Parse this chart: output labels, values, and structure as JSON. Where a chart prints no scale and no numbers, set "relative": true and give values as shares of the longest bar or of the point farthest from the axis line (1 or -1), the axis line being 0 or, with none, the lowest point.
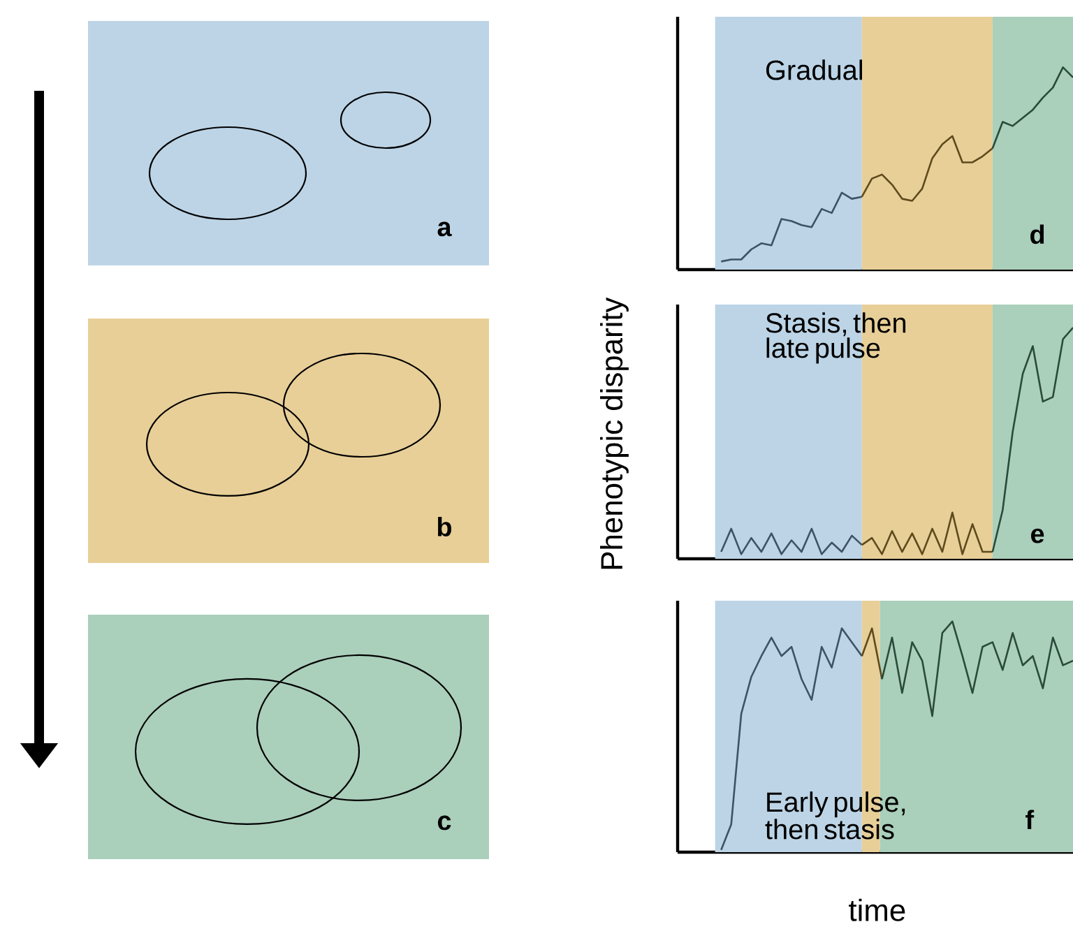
{
  "chart_data": [
    {
      "type": "other",
      "annotations": [
        "a"
      ]
    },
    {
      "type": "other",
      "annotations": [
        "b"
      ]
    },
    {
      "type": "other",
      "annotations": [
        "c"
      ]
    },
    {
      "type": "line",
      "relative": true,
      "annotations": [
        "Gradual",
        "d"
      ],
      "categories": [
        null,
        null,
        null,
        null,
        null,
        null,
        null,
        null,
        null,
        null,
        null,
        null,
        null,
        null,
        null,
        null,
        null,
        null,
        null,
        null,
        null,
        null,
        null,
        null,
        null,
        null,
        null,
        null,
        null,
        null,
        null,
        null,
        null,
        null,
        null,
        null
      ],
      "series": [
        {
          "color": "#3d5364",
          "values": [
            0.04,
            0.05,
            0.05,
            0.1,
            0.13,
            0.12,
            0.25,
            0.24,
            0.22,
            0.21,
            0.3,
            0.28,
            0.38,
            0.35,
            0.36,
            null,
            null,
            null,
            null,
            null,
            null,
            null,
            null,
            null,
            null,
            null,
            null,
            null,
            null,
            null,
            null,
            null,
            null,
            null,
            null,
            null
          ]
        },
        {
          "color": "#5e4a1c",
          "values": [
            null,
            null,
            null,
            null,
            null,
            null,
            null,
            null,
            null,
            null,
            null,
            null,
            null,
            null,
            0.36,
            0.45,
            0.47,
            0.42,
            0.35,
            0.34,
            0.4,
            0.55,
            0.62,
            0.66,
            0.53,
            0.53,
            0.56,
            0.6,
            null,
            null,
            null,
            null,
            null,
            null,
            null,
            null
          ]
        },
        {
          "color": "#2a4a3a",
          "values": [
            null,
            null,
            null,
            null,
            null,
            null,
            null,
            null,
            null,
            null,
            null,
            null,
            null,
            null,
            null,
            null,
            null,
            null,
            null,
            null,
            null,
            null,
            null,
            null,
            null,
            null,
            null,
            0.6,
            0.73,
            0.71,
            0.75,
            0.79,
            0.85,
            0.9,
            1.0,
            0.95
          ]
        }
      ]
    },
    {
      "type": "line",
      "relative": true,
      "ylabel": "Phenotypic disparity",
      "annotations": [
        "Stasis, then late pulse",
        "e"
      ],
      "categories": [
        null,
        null,
        null,
        null,
        null,
        null,
        null,
        null,
        null,
        null,
        null,
        null,
        null,
        null,
        null,
        null,
        null,
        null,
        null,
        null,
        null,
        null,
        null,
        null,
        null,
        null,
        null,
        null,
        null,
        null,
        null,
        null,
        null,
        null,
        null,
        null
      ],
      "series": [
        {
          "color": "#3d5364",
          "values": [
            0.03,
            0.13,
            0.02,
            0.09,
            0.03,
            0.11,
            0.02,
            0.08,
            0.03,
            0.13,
            0.02,
            0.07,
            0.03,
            0.1,
            0.06,
            null,
            null,
            null,
            null,
            null,
            null,
            null,
            null,
            null,
            null,
            null,
            null,
            null,
            null,
            null,
            null,
            null,
            null,
            null,
            null,
            null
          ]
        },
        {
          "color": "#5e4a1c",
          "values": [
            null,
            null,
            null,
            null,
            null,
            null,
            null,
            null,
            null,
            null,
            null,
            null,
            null,
            null,
            0.06,
            0.09,
            0.02,
            0.12,
            0.03,
            0.11,
            0.02,
            0.13,
            0.03,
            0.2,
            0.02,
            0.15,
            0.03,
            0.03,
            null,
            null,
            null,
            null,
            null,
            null,
            null,
            null
          ]
        },
        {
          "color": "#2a4a3a",
          "values": [
            null,
            null,
            null,
            null,
            null,
            null,
            null,
            null,
            null,
            null,
            null,
            null,
            null,
            null,
            null,
            null,
            null,
            null,
            null,
            null,
            null,
            null,
            null,
            null,
            null,
            null,
            null,
            0.03,
            0.21,
            0.55,
            0.8,
            0.92,
            0.68,
            0.7,
            0.95,
            1.0
          ]
        }
      ]
    },
    {
      "type": "line",
      "relative": true,
      "xlabel": "time",
      "annotations": [
        "Early pulse, then stasis",
        "f"
      ],
      "categories": [
        null,
        null,
        null,
        null,
        null,
        null,
        null,
        null,
        null,
        null,
        null,
        null,
        null,
        null,
        null,
        null,
        null,
        null,
        null,
        null,
        null,
        null,
        null,
        null,
        null,
        null,
        null,
        null,
        null,
        null,
        null,
        null,
        null,
        null,
        null,
        null
      ],
      "series": [
        {
          "color": "#3d5364",
          "values": [
            0.01,
            0.12,
            0.6,
            0.76,
            0.85,
            0.93,
            0.85,
            0.89,
            0.75,
            0.66,
            0.89,
            0.8,
            0.97,
            0.91,
            0.85,
            null,
            null,
            null,
            null,
            null,
            null,
            null,
            null,
            null,
            null,
            null,
            null,
            null,
            null,
            null,
            null,
            null,
            null,
            null,
            null,
            null
          ]
        },
        {
          "color": "#5e4a1c",
          "values": [
            null,
            null,
            null,
            null,
            null,
            null,
            null,
            null,
            null,
            null,
            null,
            null,
            null,
            null,
            0.85,
            0.97,
            0.75,
            null,
            null,
            null,
            null,
            null,
            null,
            null,
            null,
            null,
            null,
            null,
            null,
            null,
            null,
            null,
            null,
            null,
            null,
            null
          ]
        },
        {
          "color": "#2a4a3a",
          "values": [
            null,
            null,
            null,
            null,
            null,
            null,
            null,
            null,
            null,
            null,
            null,
            null,
            null,
            null,
            null,
            null,
            0.75,
            0.93,
            0.69,
            0.91,
            0.83,
            0.59,
            0.95,
            1.0,
            0.85,
            0.69,
            0.89,
            0.91,
            0.79,
            0.95,
            0.81,
            0.85,
            0.71,
            0.93,
            0.81,
            0.83
          ]
        }
      ]
    }
  ]
}
